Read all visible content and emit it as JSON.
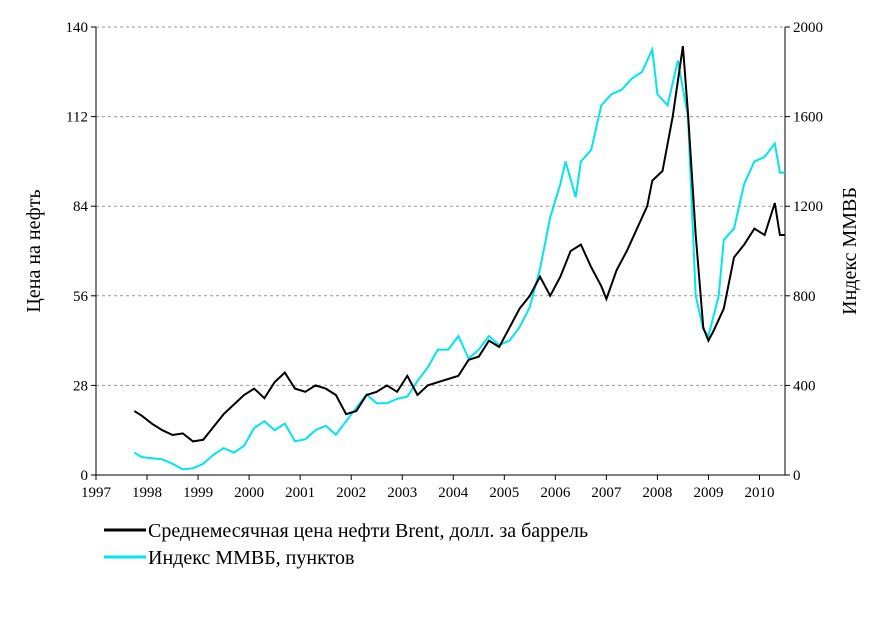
{
  "chart_data": {
    "type": "line",
    "ylabel": "Цена на нефть",
    "y2label": "Индекс ММВБ",
    "xlim": [
      1997,
      2010.5
    ],
    "xticks": [
      1997,
      1998,
      1999,
      2000,
      2001,
      2002,
      2003,
      2004,
      2005,
      2006,
      2007,
      2008,
      2009,
      2010
    ],
    "ylim": [
      0,
      140
    ],
    "yticks": [
      0,
      28,
      56,
      84,
      112,
      140
    ],
    "y2lim": [
      0,
      2000
    ],
    "y2ticks": [
      0,
      400,
      800,
      1200,
      1600,
      2000
    ],
    "grid": true,
    "series": [
      {
        "name": "Среднемесячная цена нефти Brent, долл. за баррель",
        "color": "#000000",
        "x": [
          1997.75,
          1997.9,
          1998.1,
          1998.3,
          1998.5,
          1998.7,
          1998.9,
          1999.1,
          1999.3,
          1999.5,
          1999.7,
          1999.9,
          2000.1,
          2000.3,
          2000.5,
          2000.7,
          2000.9,
          2001.1,
          2001.3,
          2001.5,
          2001.7,
          2001.9,
          2002.1,
          2002.3,
          2002.5,
          2002.7,
          2002.9,
          2003.1,
          2003.3,
          2003.5,
          2003.7,
          2003.9,
          2004.1,
          2004.3,
          2004.5,
          2004.7,
          2004.9,
          2005.1,
          2005.3,
          2005.5,
          2005.7,
          2005.9,
          2006.1,
          2006.3,
          2006.5,
          2006.7,
          2006.9,
          2007.0,
          2007.2,
          2007.4,
          2007.6,
          2007.8,
          2007.9,
          2008.1,
          2008.3,
          2008.5,
          2008.6,
          2008.75,
          2008.9,
          2009.0,
          2009.1,
          2009.3,
          2009.5,
          2009.7,
          2009.9,
          2010.1,
          2010.3,
          2010.4,
          2010.5
        ],
        "values": [
          20,
          18.5,
          16,
          14,
          12.5,
          13,
          10.5,
          11,
          15,
          19,
          22,
          25,
          27,
          24,
          29,
          32,
          27,
          26,
          28,
          27,
          25,
          19,
          20,
          25,
          26,
          28,
          26,
          31,
          25,
          28,
          29,
          30,
          31,
          36,
          37,
          42,
          40,
          46,
          52,
          56,
          62,
          56,
          62,
          70,
          72,
          65,
          59,
          55,
          64,
          70,
          77,
          84,
          92,
          95,
          112,
          134,
          113,
          75,
          46,
          42,
          45,
          52,
          68,
          72,
          77,
          75,
          85,
          75,
          75
        ]
      },
      {
        "name": "Индекс ММВБ, пунктов",
        "color": "#00e5ee",
        "axis": "y2",
        "x": [
          1997.75,
          1997.9,
          1998.1,
          1998.3,
          1998.5,
          1998.7,
          1998.9,
          1999.1,
          1999.3,
          1999.5,
          1999.7,
          1999.9,
          2000.1,
          2000.3,
          2000.5,
          2000.7,
          2000.9,
          2001.1,
          2001.3,
          2001.5,
          2001.7,
          2001.9,
          2002.1,
          2002.3,
          2002.5,
          2002.7,
          2002.9,
          2003.1,
          2003.3,
          2003.5,
          2003.7,
          2003.9,
          2004.1,
          2004.3,
          2004.5,
          2004.7,
          2004.9,
          2005.1,
          2005.3,
          2005.5,
          2005.7,
          2005.9,
          2006.1,
          2006.2,
          2006.4,
          2006.5,
          2006.7,
          2006.9,
          2007.1,
          2007.3,
          2007.5,
          2007.7,
          2007.9,
          2008.0,
          2008.2,
          2008.4,
          2008.6,
          2008.75,
          2008.9,
          2009.0,
          2009.2,
          2009.3,
          2009.5,
          2009.7,
          2009.9,
          2010.1,
          2010.3,
          2010.4,
          2010.5
        ],
        "values": [
          100,
          80,
          75,
          70,
          50,
          25,
          30,
          50,
          90,
          120,
          100,
          130,
          210,
          240,
          200,
          230,
          150,
          160,
          200,
          220,
          180,
          240,
          300,
          360,
          320,
          320,
          340,
          350,
          420,
          480,
          560,
          560,
          620,
          520,
          560,
          620,
          580,
          600,
          660,
          750,
          920,
          1150,
          1300,
          1400,
          1240,
          1400,
          1450,
          1650,
          1700,
          1720,
          1770,
          1800,
          1900,
          1700,
          1650,
          1850,
          1600,
          800,
          650,
          620,
          800,
          1050,
          1100,
          1300,
          1400,
          1420,
          1480,
          1350,
          1350
        ]
      }
    ]
  }
}
